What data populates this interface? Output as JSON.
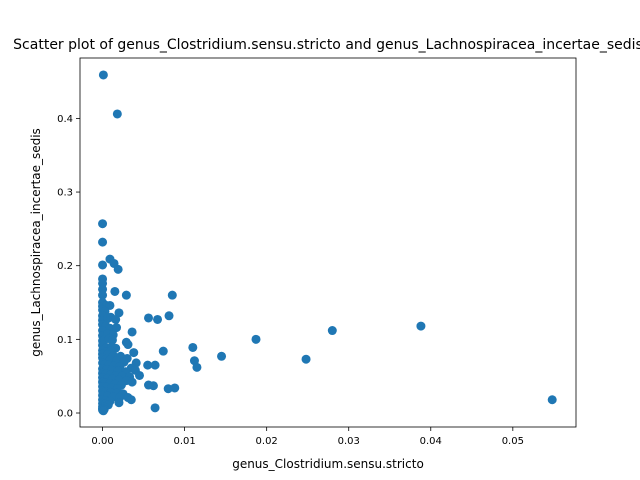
{
  "chart_data": {
    "type": "scatter",
    "title": "Scatter plot of genus_Clostridium.sensu.stricto and genus_Lachnospiracea_incertae_sedis",
    "xlabel": "genus_Clostridium.sensu.stricto",
    "ylabel": "genus_Lachnospiracea_incertae_sedis",
    "xlim": [
      -0.00275,
      0.0577
    ],
    "ylim": [
      -0.019,
      0.482
    ],
    "xticks": [
      0.0,
      0.01,
      0.02,
      0.03,
      0.04,
      0.05
    ],
    "xtick_labels": [
      "0.00",
      "0.01",
      "0.02",
      "0.03",
      "0.04",
      "0.05"
    ],
    "yticks": [
      0.0,
      0.1,
      0.2,
      0.3,
      0.4
    ],
    "ytick_labels": [
      "0.0",
      "0.1",
      "0.2",
      "0.3",
      "0.4"
    ],
    "grid": false,
    "marker_color": "#1f77b4",
    "points": [
      [
        0.0001,
        0.459
      ],
      [
        0.0018,
        0.406
      ],
      [
        0.0,
        0.257
      ],
      [
        0.0,
        0.232
      ],
      [
        0.0009,
        0.209
      ],
      [
        0.0,
        0.201
      ],
      [
        0.0014,
        0.203
      ],
      [
        0.0019,
        0.195
      ],
      [
        0.0,
        0.182
      ],
      [
        0.0,
        0.176
      ],
      [
        0.0,
        0.168
      ],
      [
        0.0,
        0.16
      ],
      [
        0.0015,
        0.165
      ],
      [
        0.0029,
        0.16
      ],
      [
        0.0085,
        0.16
      ],
      [
        0.0,
        0.15
      ],
      [
        0.0,
        0.145
      ],
      [
        0.0005,
        0.146
      ],
      [
        0.0009,
        0.146
      ],
      [
        0.0,
        0.14
      ],
      [
        0.0003,
        0.138
      ],
      [
        0.0,
        0.132
      ],
      [
        0.0,
        0.126
      ],
      [
        0.0006,
        0.128
      ],
      [
        0.001,
        0.13
      ],
      [
        0.002,
        0.136
      ],
      [
        0.0016,
        0.127
      ],
      [
        0.0056,
        0.129
      ],
      [
        0.0067,
        0.127
      ],
      [
        0.0081,
        0.132
      ],
      [
        0.0,
        0.12
      ],
      [
        0.0004,
        0.118
      ],
      [
        0.0009,
        0.115
      ],
      [
        0.0017,
        0.116
      ],
      [
        0.0036,
        0.11
      ],
      [
        0.0,
        0.112
      ],
      [
        0.0,
        0.105
      ],
      [
        0.0006,
        0.107
      ],
      [
        0.0013,
        0.106
      ],
      [
        0.0,
        0.098
      ],
      [
        0.0003,
        0.1
      ],
      [
        0.0008,
        0.101
      ],
      [
        0.0012,
        0.099
      ],
      [
        0.0029,
        0.096
      ],
      [
        0.0031,
        0.093
      ],
      [
        0.0187,
        0.1
      ],
      [
        0.028,
        0.112
      ],
      [
        0.0388,
        0.118
      ],
      [
        0.0,
        0.092
      ],
      [
        0.0005,
        0.089
      ],
      [
        0.0011,
        0.09
      ],
      [
        0.0016,
        0.088
      ],
      [
        0.011,
        0.089
      ],
      [
        0.0,
        0.085
      ],
      [
        0.0004,
        0.083
      ],
      [
        0.001,
        0.084
      ],
      [
        0.0038,
        0.082
      ],
      [
        0.0074,
        0.084
      ],
      [
        0.0,
        0.08
      ],
      [
        0.0006,
        0.079
      ],
      [
        0.0013,
        0.078
      ],
      [
        0.0022,
        0.077
      ],
      [
        0.003,
        0.074
      ],
      [
        0.0145,
        0.077
      ],
      [
        0.0,
        0.075
      ],
      [
        0.0004,
        0.073
      ],
      [
        0.0009,
        0.072
      ],
      [
        0.0017,
        0.071
      ],
      [
        0.0026,
        0.069
      ],
      [
        0.0041,
        0.068
      ],
      [
        0.0112,
        0.071
      ],
      [
        0.0248,
        0.073
      ],
      [
        0.0,
        0.068
      ],
      [
        0.0003,
        0.066
      ],
      [
        0.0008,
        0.065
      ],
      [
        0.0014,
        0.064
      ],
      [
        0.0021,
        0.063
      ],
      [
        0.0035,
        0.061
      ],
      [
        0.0055,
        0.065
      ],
      [
        0.0064,
        0.065
      ],
      [
        0.0115,
        0.062
      ],
      [
        0.0,
        0.06
      ],
      [
        0.0005,
        0.059
      ],
      [
        0.0011,
        0.058
      ],
      [
        0.0019,
        0.057
      ],
      [
        0.0028,
        0.056
      ],
      [
        0.004,
        0.058
      ],
      [
        0.0,
        0.054
      ],
      [
        0.0004,
        0.053
      ],
      [
        0.001,
        0.052
      ],
      [
        0.0016,
        0.051
      ],
      [
        0.0024,
        0.05
      ],
      [
        0.0033,
        0.049
      ],
      [
        0.0045,
        0.051
      ],
      [
        0.0,
        0.048
      ],
      [
        0.0006,
        0.047
      ],
      [
        0.0012,
        0.046
      ],
      [
        0.002,
        0.045
      ],
      [
        0.0029,
        0.044
      ],
      [
        0.0036,
        0.042
      ],
      [
        0.0,
        0.042
      ],
      [
        0.0003,
        0.041
      ],
      [
        0.0009,
        0.04
      ],
      [
        0.0015,
        0.039
      ],
      [
        0.0023,
        0.038
      ],
      [
        0.0056,
        0.038
      ],
      [
        0.0062,
        0.037
      ],
      [
        0.0,
        0.036
      ],
      [
        0.0005,
        0.035
      ],
      [
        0.0011,
        0.034
      ],
      [
        0.0018,
        0.033
      ],
      [
        0.008,
        0.033
      ],
      [
        0.0088,
        0.034
      ],
      [
        0.0,
        0.03
      ],
      [
        0.0004,
        0.029
      ],
      [
        0.001,
        0.028
      ],
      [
        0.0017,
        0.027
      ],
      [
        0.0025,
        0.026
      ],
      [
        0.0,
        0.024
      ],
      [
        0.0006,
        0.023
      ],
      [
        0.0013,
        0.022
      ],
      [
        0.0021,
        0.021
      ],
      [
        0.0031,
        0.021
      ],
      [
        0.0035,
        0.018
      ],
      [
        0.0548,
        0.018
      ],
      [
        0.0,
        0.018
      ],
      [
        0.0004,
        0.017
      ],
      [
        0.0009,
        0.016
      ],
      [
        0.002,
        0.014
      ],
      [
        0.0,
        0.013
      ],
      [
        0.0003,
        0.012
      ],
      [
        0.0007,
        0.011
      ],
      [
        0.0,
        0.009
      ],
      [
        0.0002,
        0.008
      ],
      [
        0.0064,
        0.007
      ],
      [
        0.0,
        0.006
      ],
      [
        0.0002,
        0.005
      ],
      [
        0.0,
        0.004
      ],
      [
        0.0001,
        0.003
      ]
    ]
  }
}
